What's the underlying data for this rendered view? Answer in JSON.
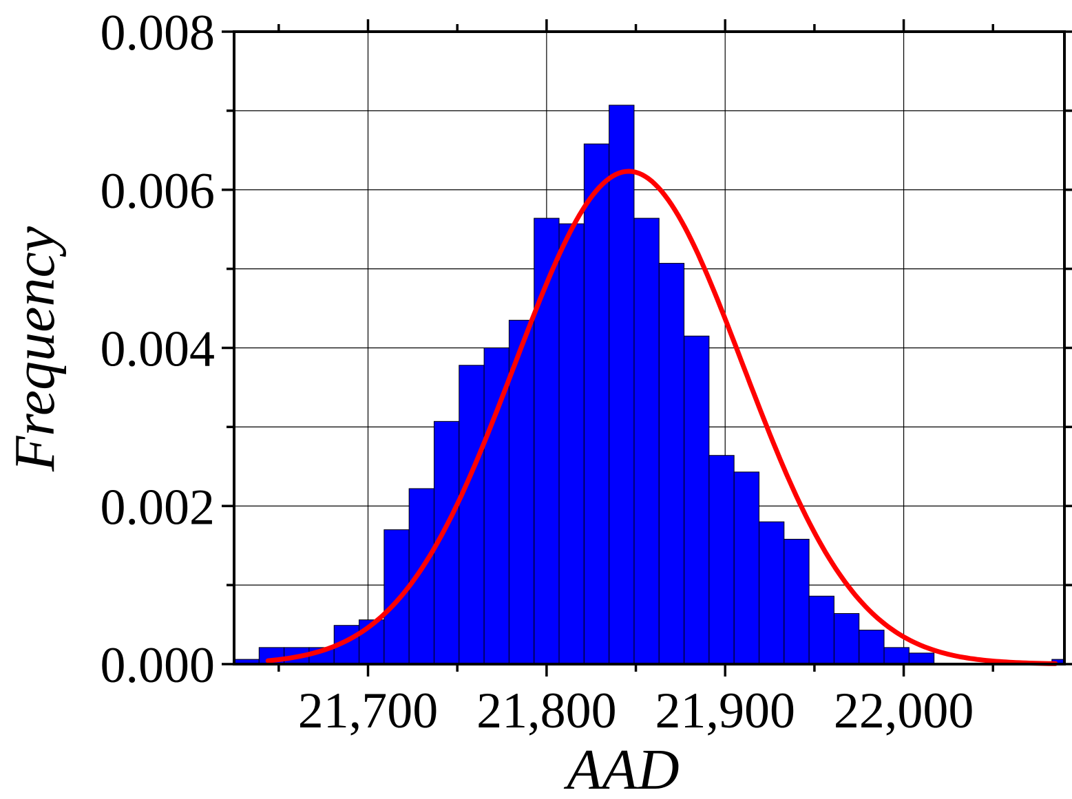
{
  "chart_data": {
    "type": "bar",
    "subtype": "histogram-with-normal-fit",
    "title": "",
    "xlabel": "AAD",
    "ylabel": "Frequency",
    "xlim": [
      21625,
      22090
    ],
    "ylim": [
      0,
      0.008
    ],
    "x_ticks": [
      21700,
      21800,
      21900,
      22000
    ],
    "x_tick_labels": [
      "21,700",
      "21,800",
      "21,900",
      "22,000"
    ],
    "y_ticks": [
      0,
      0.002,
      0.004,
      0.006,
      0.008
    ],
    "y_tick_labels": [
      "0.000",
      "0.002",
      "0.004",
      "0.006",
      "0.008"
    ],
    "grid": true,
    "bar_color": "#0000ff",
    "fit_color": "#ff0000",
    "bins": [
      {
        "x0": 21625,
        "x1": 21639,
        "value": 6e-05
      },
      {
        "x0": 21639,
        "x1": 21653,
        "value": 0.00021
      },
      {
        "x0": 21653,
        "x1": 21667,
        "value": 0.00021
      },
      {
        "x0": 21667,
        "x1": 21681,
        "value": 0.00021
      },
      {
        "x0": 21681,
        "x1": 21695,
        "value": 0.00049
      },
      {
        "x0": 21695,
        "x1": 21709,
        "value": 0.00056
      },
      {
        "x0": 21709,
        "x1": 21723,
        "value": 0.0017
      },
      {
        "x0": 21723,
        "x1": 21737,
        "value": 0.00222
      },
      {
        "x0": 21737,
        "x1": 21751,
        "value": 0.00307
      },
      {
        "x0": 21751,
        "x1": 21765,
        "value": 0.00378
      },
      {
        "x0": 21765,
        "x1": 21779,
        "value": 0.004
      },
      {
        "x0": 21779,
        "x1": 21793,
        "value": 0.00435
      },
      {
        "x0": 21793,
        "x1": 21807,
        "value": 0.00564
      },
      {
        "x0": 21807,
        "x1": 21821,
        "value": 0.00557
      },
      {
        "x0": 21821,
        "x1": 21835,
        "value": 0.00658
      },
      {
        "x0": 21835,
        "x1": 21849,
        "value": 0.00707
      },
      {
        "x0": 21849,
        "x1": 21863,
        "value": 0.00564
      },
      {
        "x0": 21863,
        "x1": 21877,
        "value": 0.00507
      },
      {
        "x0": 21877,
        "x1": 21891,
        "value": 0.00415
      },
      {
        "x0": 21891,
        "x1": 21905,
        "value": 0.00264
      },
      {
        "x0": 21905,
        "x1": 21919,
        "value": 0.00243
      },
      {
        "x0": 21919,
        "x1": 21933,
        "value": 0.0018
      },
      {
        "x0": 21933,
        "x1": 21947,
        "value": 0.00158
      },
      {
        "x0": 21947,
        "x1": 21961,
        "value": 0.00086
      },
      {
        "x0": 21961,
        "x1": 21975,
        "value": 0.00064
      },
      {
        "x0": 21975,
        "x1": 21989,
        "value": 0.00043
      },
      {
        "x0": 21989,
        "x1": 22003,
        "value": 0.00021
      },
      {
        "x0": 22003,
        "x1": 22017,
        "value": 0.00014
      },
      {
        "x0": 22083,
        "x1": 22090,
        "value": 6e-05
      }
    ],
    "fit_curve": {
      "type": "normal",
      "mean": 21846,
      "sd": 64,
      "x_range": [
        21644,
        22085
      ]
    }
  }
}
